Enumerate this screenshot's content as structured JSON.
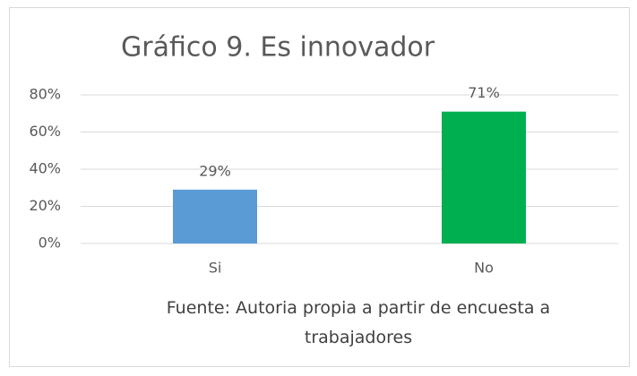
{
  "chart_data": {
    "type": "bar",
    "title": "Gráfico 9. Es innovador",
    "categories": [
      "Si",
      "No"
    ],
    "values": [
      29,
      71
    ],
    "value_labels": [
      "29%",
      "71%"
    ],
    "colors": [
      "#5b9bd5",
      "#00b050"
    ],
    "ylim": [
      0,
      80
    ],
    "yticks": [
      {
        "value": 0,
        "label": "0%"
      },
      {
        "value": 20,
        "label": "20%"
      },
      {
        "value": 40,
        "label": "40%"
      },
      {
        "value": 60,
        "label": "60%"
      },
      {
        "value": 80,
        "label": "80%"
      }
    ],
    "grid": true,
    "caption": "Fuente: Autoria propia a partir de encuesta a trabajadores"
  }
}
